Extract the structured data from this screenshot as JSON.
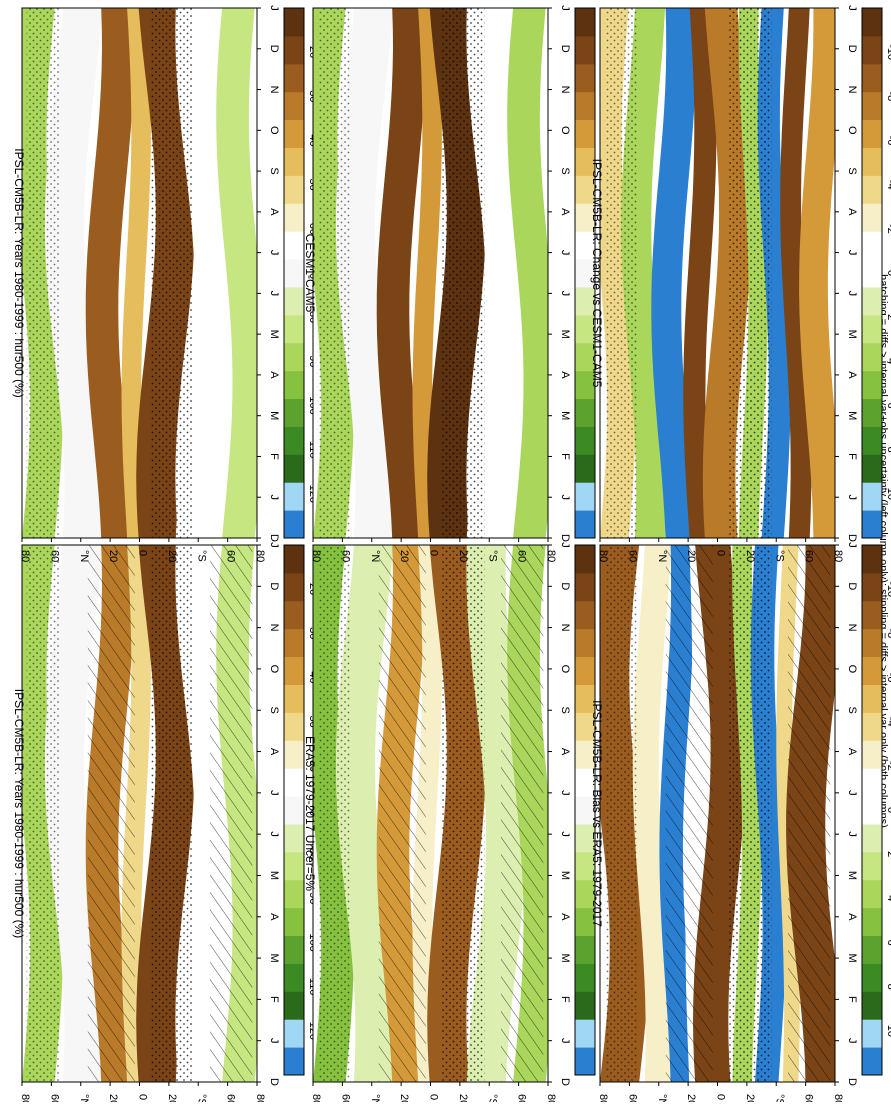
{
  "footnote": "hatching = diffs > internal var+obs uncertainty (left column only); stippling = diffs > internal var only (both columns)",
  "hatch_color": "#000000",
  "stipple_color": "#000000",
  "humidity_colors": [
    "#2b7fd0",
    "#9fd7f5",
    "#2a6a1a",
    "#3b8a24",
    "#5ba32e",
    "#86c23f",
    "#a9d65b",
    "#c5e681",
    "#dcefb0",
    "#f7f7f7",
    "#ffffff",
    "#f7efc8",
    "#efd88a",
    "#e6bd5c",
    "#d49a3a",
    "#b97a2a",
    "#9a5c1f",
    "#7a4416",
    "#5c3210"
  ],
  "change_colors": [
    "#2b7fd0",
    "#9fd7f5",
    "#2a6a1a",
    "#3b8a24",
    "#5ba32e",
    "#86c23f",
    "#a9d65b",
    "#c5e681",
    "#dcefb0",
    "#ffffff",
    "#ffffff",
    "#f7efc8",
    "#efd88a",
    "#e6bd5c",
    "#d49a3a",
    "#b97a2a",
    "#9a5c1f",
    "#7a4416",
    "#5c3210"
  ],
  "chart_data": [
    {
      "type": "heatmap",
      "title": "IPSL-CM5B-LR: Years 1980-1999 : hur500 (%)",
      "x_ticks": [
        "D",
        "J",
        "F",
        "M",
        "A",
        "M",
        "J",
        "J",
        "A",
        "S",
        "O",
        "N",
        "D",
        "J"
      ],
      "y_ticks": [
        "80",
        "60",
        "°N",
        "20",
        "0",
        "20",
        "°S",
        "60",
        "80"
      ],
      "colorbar": [
        "120",
        "110",
        "100",
        "90",
        "80",
        "70",
        "60",
        "50",
        "40",
        "30",
        "20"
      ],
      "palette": "humidity",
      "hatched": true,
      "stippled": true,
      "bands": [
        {
          "lat": [
            90,
            65
          ],
          "level": 6
        },
        {
          "lat": [
            65,
            35
          ],
          "level": 9
        },
        {
          "lat": [
            35,
            10
          ],
          "level": 15
        },
        {
          "lat": [
            10,
            -5
          ],
          "level": 12
        },
        {
          "lat": [
            -5,
            -35
          ],
          "level": 17
        },
        {
          "lat": [
            -35,
            -65
          ],
          "level": 10
        },
        {
          "lat": [
            -65,
            -90
          ],
          "level": 7
        }
      ]
    },
    {
      "type": "heatmap",
      "title": "IPSL-CM5B-LR: Years 1980-1999 : hur500 (%)",
      "x_ticks": [
        "D",
        "J",
        "F",
        "M",
        "A",
        "M",
        "J",
        "J",
        "A",
        "S",
        "O",
        "N",
        "D",
        "J"
      ],
      "y_ticks": [
        "80",
        "60",
        "°N",
        "20",
        "0",
        "20",
        "°S",
        "60",
        "80"
      ],
      "colorbar": [
        "120",
        "110",
        "100",
        "90",
        "80",
        "70",
        "60",
        "50",
        "40",
        "30",
        "20"
      ],
      "palette": "humidity",
      "hatched": false,
      "stippled": true,
      "bands": [
        {
          "lat": [
            90,
            65
          ],
          "level": 6
        },
        {
          "lat": [
            65,
            35
          ],
          "level": 9
        },
        {
          "lat": [
            35,
            10
          ],
          "level": 16
        },
        {
          "lat": [
            10,
            -5
          ],
          "level": 13
        },
        {
          "lat": [
            -5,
            -35
          ],
          "level": 17
        },
        {
          "lat": [
            -35,
            -65
          ],
          "level": 10
        },
        {
          "lat": [
            -65,
            -90
          ],
          "level": 7
        }
      ]
    },
    {
      "type": "heatmap",
      "title": "ERA5: 1979-2017 Uncer=5%",
      "x_ticks": [
        "D",
        "J",
        "F",
        "M",
        "A",
        "M",
        "J",
        "J",
        "A",
        "S",
        "O",
        "N",
        "D",
        "J"
      ],
      "y_ticks": [
        "80",
        "60",
        "°N",
        "20",
        "0",
        "20",
        "°S",
        "60",
        "80"
      ],
      "colorbar": [
        "120",
        "110",
        "100",
        "90",
        "80",
        "70",
        "60",
        "50",
        "40",
        "30",
        "20"
      ],
      "palette": "humidity",
      "hatched": true,
      "stippled": true,
      "bands": [
        {
          "lat": [
            90,
            65
          ],
          "level": 5
        },
        {
          "lat": [
            65,
            35
          ],
          "level": 8
        },
        {
          "lat": [
            35,
            10
          ],
          "level": 14
        },
        {
          "lat": [
            10,
            -5
          ],
          "level": 11
        },
        {
          "lat": [
            -5,
            -35
          ],
          "level": 16
        },
        {
          "lat": [
            -35,
            -65
          ],
          "level": 8
        },
        {
          "lat": [
            -65,
            -90
          ],
          "level": 6
        }
      ]
    },
    {
      "type": "heatmap",
      "title": "CESM1-CAM5",
      "x_ticks": [
        "D",
        "J",
        "F",
        "M",
        "A",
        "M",
        "J",
        "J",
        "A",
        "S",
        "O",
        "N",
        "D",
        "J"
      ],
      "y_ticks": [
        "80",
        "60",
        "°N",
        "20",
        "0",
        "20",
        "°S",
        "60",
        "80"
      ],
      "colorbar": [
        "120",
        "110",
        "100",
        "90",
        "80",
        "70",
        "60",
        "50",
        "40",
        "30",
        "20"
      ],
      "palette": "humidity",
      "hatched": false,
      "stippled": true,
      "bands": [
        {
          "lat": [
            90,
            65
          ],
          "level": 6
        },
        {
          "lat": [
            65,
            35
          ],
          "level": 9
        },
        {
          "lat": [
            35,
            10
          ],
          "level": 17
        },
        {
          "lat": [
            10,
            -5
          ],
          "level": 14
        },
        {
          "lat": [
            -5,
            -35
          ],
          "level": 18
        },
        {
          "lat": [
            -35,
            -65
          ],
          "level": 10
        },
        {
          "lat": [
            -65,
            -90
          ],
          "level": 6
        }
      ]
    },
    {
      "type": "heatmap",
      "title": "IPSL-CM5B-LR: Bias vs ERA5: 1979-2017",
      "x_ticks": [
        "D",
        "J",
        "F",
        "M",
        "A",
        "M",
        "J",
        "J",
        "A",
        "S",
        "O",
        "N",
        "D",
        "J"
      ],
      "y_ticks": [
        "80",
        "60",
        "°N",
        "20",
        "0",
        "20",
        "°S",
        "60",
        "80"
      ],
      "colorbar": [
        "10",
        "8",
        "6",
        "4",
        "2",
        "0",
        "-2",
        "-4",
        "-6",
        "-8",
        "-10"
      ],
      "palette": "change",
      "hatched": true,
      "stippled": true,
      "bands": [
        {
          "lat": [
            90,
            60
          ],
          "level": 16
        },
        {
          "lat": [
            60,
            40
          ],
          "level": 11
        },
        {
          "lat": [
            40,
            22
          ],
          "level": 0
        },
        {
          "lat": [
            22,
            12
          ],
          "level": 10
        },
        {
          "lat": [
            12,
            -15
          ],
          "level": 17
        },
        {
          "lat": [
            -15,
            -30
          ],
          "level": 6
        },
        {
          "lat": [
            -30,
            -48
          ],
          "level": 0
        },
        {
          "lat": [
            -48,
            -60
          ],
          "level": 12
        },
        {
          "lat": [
            -60,
            -90
          ],
          "level": 17
        }
      ]
    },
    {
      "type": "heatmap",
      "title": "IPSL-CM5B-LR: Change vs CESM1-CAM5",
      "x_ticks": [
        "D",
        "J",
        "F",
        "M",
        "A",
        "M",
        "J",
        "J",
        "A",
        "S",
        "O",
        "N",
        "D",
        "J"
      ],
      "y_ticks": [
        "80",
        "60",
        "°N",
        "20",
        "0",
        "20",
        "°S",
        "60",
        "80"
      ],
      "colorbar": [
        "10",
        "8",
        "6",
        "4",
        "2",
        "0",
        "-2",
        "-4",
        "-6",
        "-8",
        "-10"
      ],
      "palette": "change",
      "hatched": false,
      "stippled": true,
      "bands": [
        {
          "lat": [
            90,
            68
          ],
          "level": 12
        },
        {
          "lat": [
            68,
            45
          ],
          "level": 6
        },
        {
          "lat": [
            45,
            22
          ],
          "level": 0
        },
        {
          "lat": [
            22,
            5
          ],
          "level": 17
        },
        {
          "lat": [
            5,
            -20
          ],
          "level": 15
        },
        {
          "lat": [
            -20,
            -35
          ],
          "level": 6
        },
        {
          "lat": [
            -35,
            -52
          ],
          "level": 0
        },
        {
          "lat": [
            -52,
            -68
          ],
          "level": 17
        },
        {
          "lat": [
            -68,
            -90
          ],
          "level": 14
        }
      ]
    }
  ]
}
